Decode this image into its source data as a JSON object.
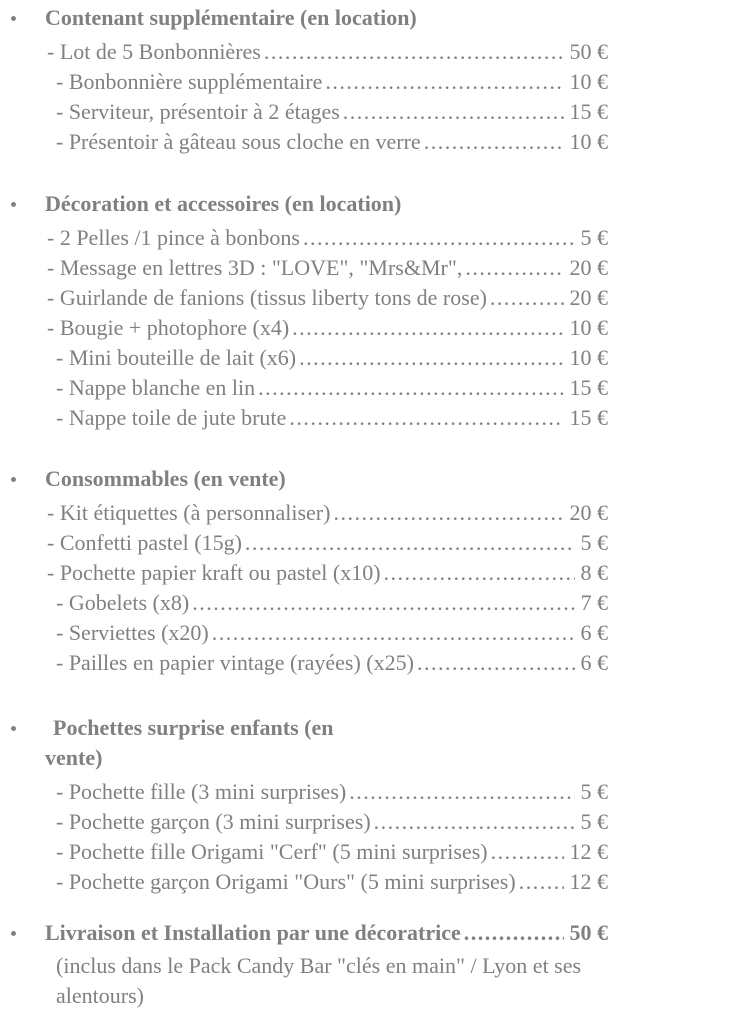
{
  "colors": {
    "text": "#808080",
    "background": "#ffffff"
  },
  "currency_symbol": "€",
  "sections": [
    {
      "title": "Contenant supplémentaire (en location)",
      "items": [
        {
          "label": "- Lot de 5 Bonbonnières",
          "price": "50 €"
        },
        {
          "label": "- Bonbonnière supplémentaire",
          "price": "10 €"
        },
        {
          "label": "- Serviteur, présentoir à 2 étages",
          "price": "15 €"
        },
        {
          "label": "- Présentoir à gâteau sous cloche en verre",
          "price": "10 €"
        }
      ]
    },
    {
      "title": "Décoration et accessoires (en location)",
      "items": [
        {
          "label": "- 2 Pelles /1 pince à bonbons",
          "price": "5 €"
        },
        {
          "label": "- Message en lettres 3D : \"LOVE\", \"Mrs&Mr\",",
          "price": "20 €"
        },
        {
          "label": "- Guirlande de fanions (tissus liberty tons de rose)",
          "price": "20 €"
        },
        {
          "label": "- Bougie + photophore (x4)",
          "price": "10 €"
        },
        {
          "label": "- Mini bouteille de lait (x6)",
          "price": "10 €"
        },
        {
          "label": "- Nappe blanche en lin",
          "price": "15 €"
        },
        {
          "label": "- Nappe toile de jute brute",
          "price": "15 €"
        }
      ]
    },
    {
      "title": "Consommables (en vente)",
      "items": [
        {
          "label": "- Kit étiquettes (à personnaliser)",
          "price": "20 €"
        },
        {
          "label": "- Confetti pastel (15g)",
          "price": "5 €"
        },
        {
          "label": "- Pochette papier kraft ou pastel (x10)",
          "price": "8 €"
        },
        {
          "label": "- Gobelets (x8)",
          "price": "7 €"
        },
        {
          "label": "- Serviettes (x20)",
          "price": "6 €"
        },
        {
          "label": "- Pailles en papier vintage (rayées) (x25)",
          "price": "6 €"
        }
      ]
    },
    {
      "title_line1": "Pochettes surprise enfants (en",
      "title_line2": "vente)",
      "items": [
        {
          "label": "- Pochette fille (3 mini surprises)",
          "price": "5 €"
        },
        {
          "label": "- Pochette garçon (3 mini surprises)",
          "price": "5 €"
        },
        {
          "label": "- Pochette fille Origami \"Cerf\" (5 mini surprises)",
          "price": "12 €"
        },
        {
          "label": "- Pochette garçon Origami \"Ours\" (5 mini surprises)",
          "price": "12 €"
        }
      ]
    },
    {
      "title": "Livraison et Installation par une décoratrice",
      "price": "50 €",
      "description": "(inclus dans le Pack Candy Bar \"clés en main\" / Lyon et ses alentours)"
    }
  ]
}
